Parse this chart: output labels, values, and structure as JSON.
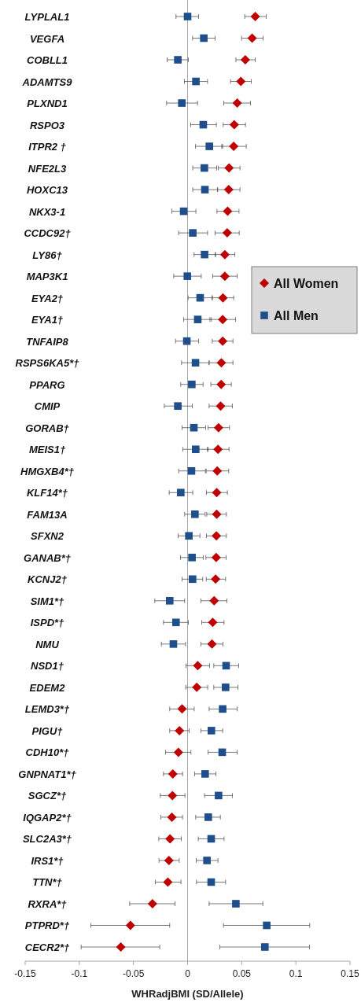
{
  "chart_data": {
    "type": "scatter",
    "orientation": "horizontal",
    "xlabel": "WHRadjBMI (SD/Allele)",
    "xlim": [
      -0.15,
      0.15
    ],
    "xticks": [
      -0.15,
      -0.1,
      -0.05,
      0,
      0.05,
      0.1,
      0.15
    ],
    "legend": "right",
    "grid": false,
    "ref_lines": [
      {
        "axis": "x",
        "value": 0,
        "color": "#a6a6a6"
      }
    ],
    "categories": [
      "LYPLAL1",
      "VEGFA",
      "COBLL1",
      "ADAMTS9",
      "PLXND1",
      "RSPO3",
      "ITPR2 †",
      "NFE2L3",
      "HOXC13",
      "NKX3-1",
      "CCDC92†",
      "LY86†",
      "MAP3K1",
      "EYA2†",
      "EYA1†",
      "TNFAIP8",
      "RSPS6KA5*†",
      "PPARG",
      "CMIP",
      "GORAB†",
      "MEIS1†",
      "HMGXB4*†",
      "KLF14*†",
      "FAM13A",
      "SFXN2",
      "GANAB*†",
      "KCNJ2†",
      "SIM1*†",
      "ISPD*†",
      "NMU",
      "NSD1†",
      "EDEM2",
      "LEMD3*†",
      "PIGU†",
      "CDH10*†",
      "GNPNAT1*†",
      "SGCZ*†",
      "IQGAP2*†",
      "SLC2A3*†",
      "IRS1*†",
      "TTN*†",
      "RXRA*†",
      "PTPRD*†",
      "CECR2*†"
    ],
    "series": [
      {
        "name": "All Women",
        "color": "#c00000",
        "marker": "diamond",
        "values": [
          0.0625,
          0.0596,
          0.0533,
          0.0492,
          0.0458,
          0.0431,
          0.0426,
          0.0383,
          0.038,
          0.037,
          0.0366,
          0.0344,
          0.0344,
          0.0327,
          0.0324,
          0.0324,
          0.0312,
          0.031,
          0.0305,
          0.0286,
          0.0281,
          0.0274,
          0.0269,
          0.0269,
          0.0266,
          0.0264,
          0.0259,
          0.0245,
          0.0232,
          0.0225,
          0.0094,
          0.0085,
          -0.0051,
          -0.0075,
          -0.0085,
          -0.0136,
          -0.014,
          -0.0145,
          -0.0162,
          -0.0172,
          -0.0182,
          -0.0324,
          -0.0528,
          -0.0617
        ],
        "errors": [
          [
            0.0528,
            0.0726
          ],
          [
            0.0499,
            0.0697
          ],
          [
            0.0446,
            0.0625
          ],
          [
            0.0397,
            0.0588
          ],
          [
            0.0334,
            0.0581
          ],
          [
            0.0329,
            0.0535
          ],
          [
            0.0315,
            0.0542
          ],
          [
            0.0283,
            0.0484
          ],
          [
            0.0278,
            0.0484
          ],
          [
            0.0271,
            0.0475
          ],
          [
            0.0254,
            0.0477
          ],
          [
            0.0254,
            0.0436
          ],
          [
            0.0232,
            0.0458
          ],
          [
            0.0225,
            0.0426
          ],
          [
            0.0206,
            0.0443
          ],
          [
            0.0228,
            0.0419
          ],
          [
            0.0199,
            0.0419
          ],
          [
            0.0215,
            0.0404
          ],
          [
            0.0199,
            0.0414
          ],
          [
            0.0189,
            0.0387
          ],
          [
            0.0182,
            0.0383
          ],
          [
            0.0172,
            0.038
          ],
          [
            0.0174,
            0.0368
          ],
          [
            0.0177,
            0.0358
          ],
          [
            0.0174,
            0.0358
          ],
          [
            0.0169,
            0.0356
          ],
          [
            0.0172,
            0.0351
          ],
          [
            0.0123,
            0.0363
          ],
          [
            0.0131,
            0.0337
          ],
          [
            0.0123,
            0.0327
          ],
          [
            -0.0015,
            0.0203
          ],
          [
            -0.0017,
            0.0186
          ],
          [
            -0.0165,
            0.0061
          ],
          [
            -0.0165,
            0.0015
          ],
          [
            -0.0203,
            0.0031
          ],
          [
            -0.0223,
            -0.0046
          ],
          [
            -0.0252,
            -0.0024
          ],
          [
            -0.0247,
            -0.0046
          ],
          [
            -0.0266,
            -0.0058
          ],
          [
            -0.0264,
            -0.0077
          ],
          [
            -0.0298,
            -0.0061
          ],
          [
            -0.0535,
            -0.0116
          ],
          [
            -0.0893,
            -0.0165
          ],
          [
            -0.0983,
            -0.0257
          ]
        ]
      },
      {
        "name": "All Men",
        "color": "#1f4e8c",
        "marker": "square",
        "values": [
          0,
          0.015,
          -0.009,
          0.0077,
          -0.0053,
          0.0145,
          0.0201,
          0.0155,
          0.016,
          -0.0036,
          0.0048,
          0.0157,
          -0.0002,
          0.0116,
          0.0094,
          -0.0007,
          0.0073,
          0.0039,
          -0.009,
          0.0058,
          0.0075,
          0.0036,
          -0.0063,
          0.0068,
          0.0012,
          0.0041,
          0.0046,
          -0.0165,
          -0.0107,
          -0.0131,
          0.0356,
          0.0351,
          0.0324,
          0.022,
          0.032,
          0.0162,
          0.0286,
          0.0191,
          0.0218,
          0.0179,
          0.0218,
          0.0446,
          0.0731,
          0.0714
        ],
        "errors": [
          [
            -0.0107,
            0.0102
          ],
          [
            0.0046,
            0.0254
          ],
          [
            -0.0189,
            0.0007
          ],
          [
            -0.0029,
            0.0184
          ],
          [
            -0.0194,
            0.0092
          ],
          [
            0.0029,
            0.0266
          ],
          [
            0.0073,
            0.0324
          ],
          [
            0.0048,
            0.0269
          ],
          [
            0.0048,
            0.0276
          ],
          [
            -0.0145,
            0.0077
          ],
          [
            -0.0082,
            0.0184
          ],
          [
            0.006,
            0.0259
          ],
          [
            -0.0128,
            0.0126
          ],
          [
            0.0005,
            0.023
          ],
          [
            -0.0036,
            0.022
          ],
          [
            -0.0111,
            0.0102
          ],
          [
            -0.0056,
            0.0199
          ],
          [
            -0.0063,
            0.0143
          ],
          [
            -0.0215,
            0.0044
          ],
          [
            -0.0051,
            0.0167
          ],
          [
            -0.0044,
            0.0191
          ],
          [
            -0.0082,
            0.0165
          ],
          [
            -0.017,
            0.0048
          ],
          [
            -0.0027,
            0.0162
          ],
          [
            -0.0087,
            0.0114
          ],
          [
            -0.0065,
            0.0145
          ],
          [
            -0.0051,
            0.014
          ],
          [
            -0.0303,
            -0.0027
          ],
          [
            -0.0223,
            0.0007
          ],
          [
            -0.0242,
            -0.0019
          ],
          [
            0.0242,
            0.0472
          ],
          [
            0.0242,
            0.0465
          ],
          [
            0.0199,
            0.0458
          ],
          [
            0.0123,
            0.0324
          ],
          [
            0.0189,
            0.0458
          ],
          [
            0.0065,
            0.0262
          ],
          [
            0.0157,
            0.0414
          ],
          [
            0.0075,
            0.0303
          ],
          [
            0.0099,
            0.0337
          ],
          [
            0.008,
            0.0281
          ],
          [
            0.0082,
            0.0351
          ],
          [
            0.0199,
            0.0695
          ],
          [
            0.0332,
            0.1128
          ],
          [
            0.0298,
            0.1126
          ]
        ]
      }
    ]
  }
}
